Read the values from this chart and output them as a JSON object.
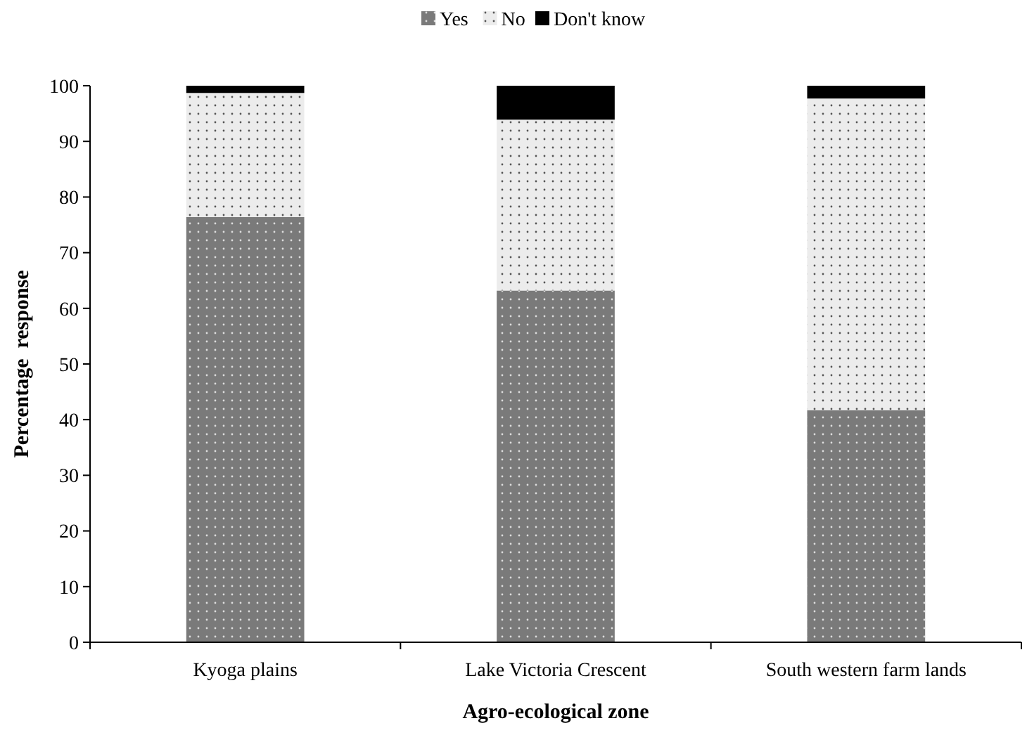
{
  "chart_data": {
    "type": "bar",
    "stacked": true,
    "xlabel": "Agro-ecological zone",
    "ylabel": "Percentage  response",
    "categories": [
      "Kyoga plains",
      "Lake Victoria Crescent",
      "South western farm lands"
    ],
    "series": [
      {
        "name": "Yes",
        "color": "#7a7a7a",
        "values": [
          76.4,
          63.2,
          41.7
        ]
      },
      {
        "name": "No",
        "color": "#ececec",
        "values": [
          22.3,
          30.7,
          56.0
        ]
      },
      {
        "name": "Don't know",
        "color": "#000000",
        "values": [
          1.3,
          6.1,
          2.3
        ]
      }
    ],
    "ylim": [
      0,
      100
    ],
    "yticks": [
      0,
      10,
      20,
      30,
      40,
      50,
      60,
      70,
      80,
      90,
      100
    ],
    "legend": "top",
    "grid": false
  }
}
